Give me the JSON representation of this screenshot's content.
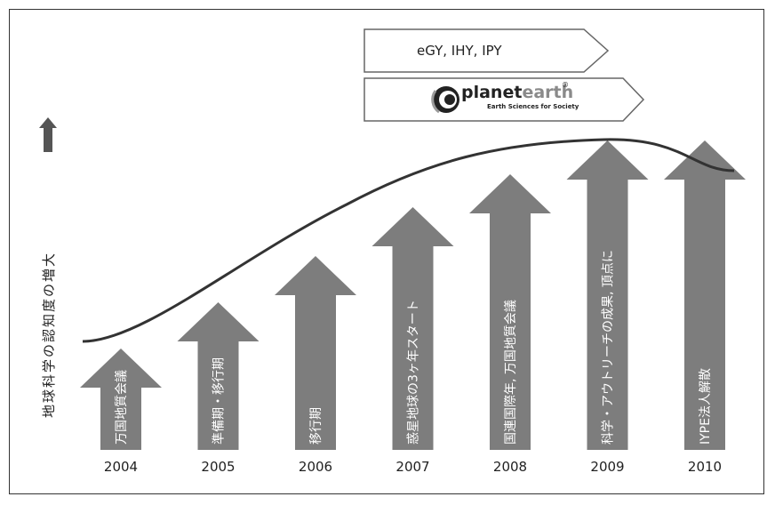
{
  "colors": {
    "arrow_fill": "#7d7d7d",
    "curve": "#333333",
    "up_arrow": "#555555",
    "banner_stroke": "#666666"
  },
  "y_axis_label": "地球科学の認知度の増大",
  "banners": [
    {
      "text": "eGY, IHY, IPY"
    },
    {
      "logo_word_1": "planet",
      "logo_word_2": "earth",
      "logo_mark": "®",
      "logo_tagline": "Earth Sciences for Society",
      "icon": "planet-earth-logo-icon"
    }
  ],
  "chart_data": {
    "type": "timeline-arrows",
    "curve_label": "",
    "items": [
      {
        "year": "2004",
        "label": "万国地質会議",
        "level": 1
      },
      {
        "year": "2005",
        "label": "準備期・移行期",
        "level": 2
      },
      {
        "year": "2006",
        "label": "移行期",
        "level": 3
      },
      {
        "year": "2007",
        "label": "惑星地球の3ヶ年スタート",
        "level": 4
      },
      {
        "year": "2008",
        "label": "国連国際年, 万国地質会議",
        "level": 5
      },
      {
        "year": "2009",
        "label": "科学・アウトリーチの成果, 頂点に",
        "level": 6
      },
      {
        "year": "2010",
        "label": "IYPE法人解散",
        "level": 6
      }
    ]
  }
}
